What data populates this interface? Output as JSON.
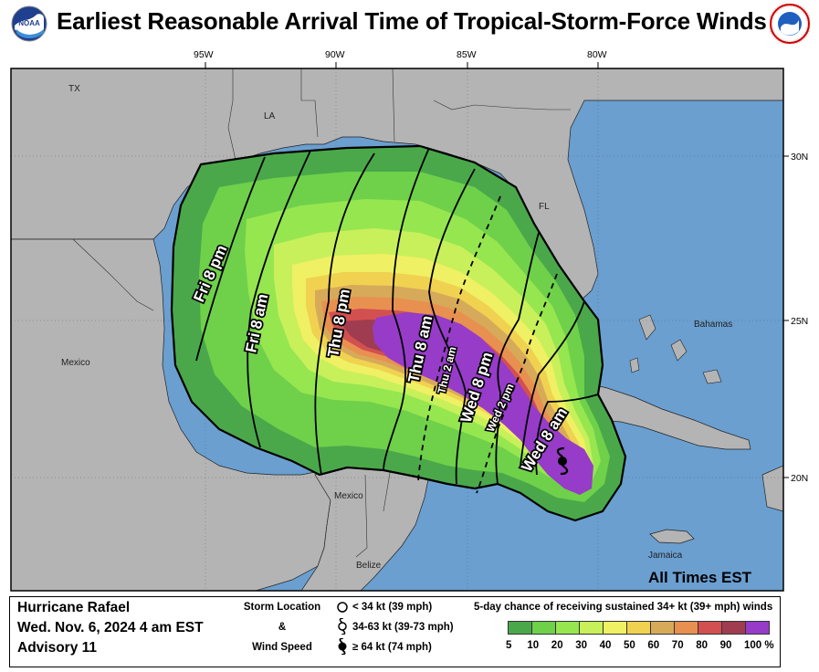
{
  "header": {
    "title": "Earliest Reasonable Arrival Time of Tropical-Storm-Force Winds",
    "left_logo": "noaa-logo",
    "right_logo": "national-weather-service-logo",
    "nws_seal_text": "NATIONAL WEATHER SERVICE"
  },
  "map": {
    "lon_labels": [
      "95W",
      "90W",
      "85W",
      "80W"
    ],
    "lat_labels": [
      "30N",
      "25N",
      "20N"
    ],
    "place_labels": {
      "tx": "TX",
      "la": "LA",
      "fl": "FL",
      "mexico_west": "Mexico",
      "mexico_yucatan": "Mexico",
      "belize": "Belize",
      "bahamas": "Bahamas",
      "jamaica": "Jamaica"
    },
    "time_labels": {
      "fri_8pm": "Fri  8 pm",
      "fri_8am": "Fri  8 am",
      "thu_8pm": "Thu  8 pm",
      "thu_8am": "Thu  8 am",
      "thu_2am": "Thu  2 am",
      "wed_8pm": "Wed  8 pm",
      "wed_2pm": "Wed  2 pm",
      "wed_8am": "Wed  8 am"
    },
    "time_zone_note": "All Times EST",
    "colors": {
      "ocean": "#6a9fd0",
      "land": "#b4b4b4",
      "storm_icon": "#000000"
    }
  },
  "info": {
    "storm_name": "Hurricane Rafael",
    "datetime": "Wed. Nov. 6, 2024  4 am EST",
    "advisory": "Advisory 11"
  },
  "storm_legend": {
    "heading_line1": "Storm Location",
    "heading_line2": "&",
    "heading_line3": "Wind Speed",
    "items": [
      {
        "icon": "open-circle-icon",
        "label": "< 34 kt (39 mph)"
      },
      {
        "icon": "tropical-storm-icon",
        "label": "34-63 kt (39-73 mph)"
      },
      {
        "icon": "hurricane-icon",
        "label": "≥ 64 kt (74 mph)"
      }
    ]
  },
  "colorbar": {
    "title": "5-day chance of receiving sustained 34+ kt (39+ mph) winds",
    "labels": [
      "5",
      "10",
      "20",
      "30",
      "40",
      "50",
      "60",
      "70",
      "80",
      "90",
      "100 %"
    ],
    "colors": [
      "#4aa84a",
      "#6fd04a",
      "#96e650",
      "#c8f05a",
      "#f0f064",
      "#f0d250",
      "#d7aa5a",
      "#e89050",
      "#d25050",
      "#a03c50",
      "#963cc8"
    ]
  }
}
